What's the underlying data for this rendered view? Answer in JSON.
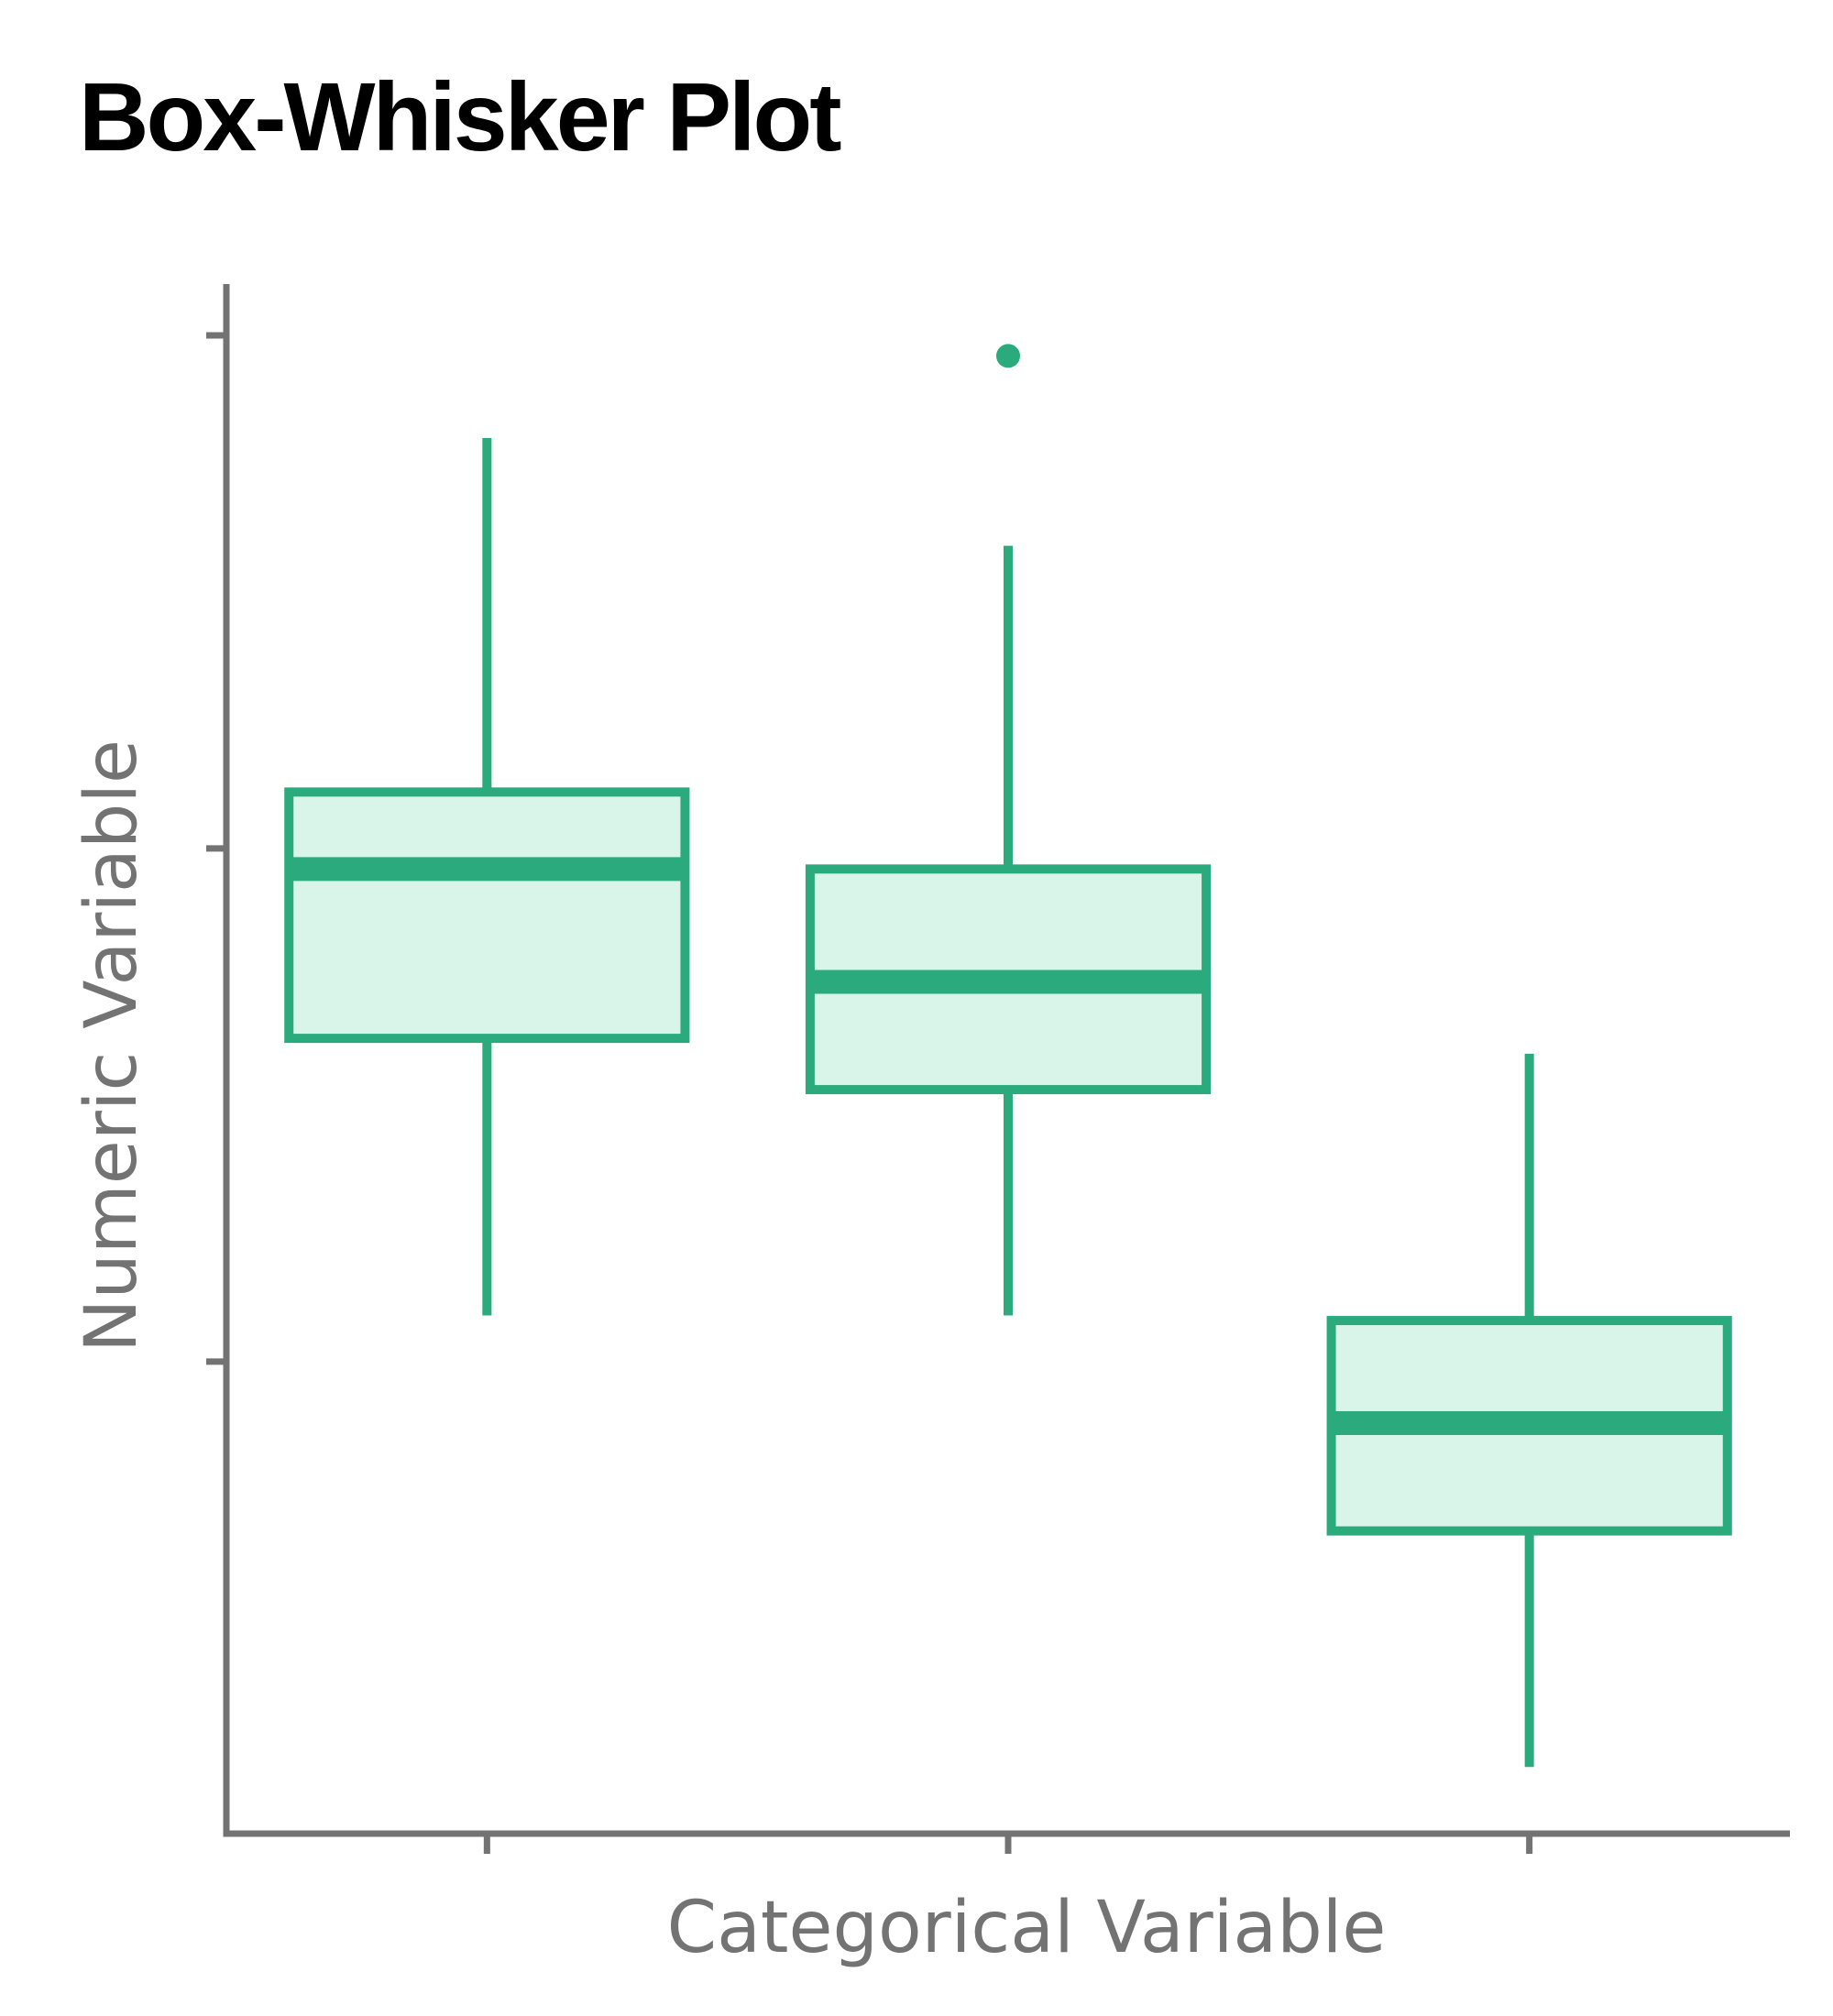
{
  "title": "Box-Whisker Plot",
  "colors": {
    "box_stroke": "#2BAA7E",
    "box_fill": "#D9F5EA",
    "axis": "#737373",
    "label": "#737373",
    "title": "#000000"
  },
  "chart_data": {
    "type": "box",
    "title": "Box-Whisker Plot",
    "xlabel": "Categorical Variable",
    "ylabel": "Numeric Variable",
    "categories": [
      "",
      "",
      ""
    ],
    "ylim": [
      -0.92,
      2.1
    ],
    "yticks": [
      0,
      1,
      2
    ],
    "ytick_labels": [
      "",
      "",
      ""
    ],
    "boxes": [
      {
        "whisker_low": 0.09,
        "q1": 0.63,
        "median": 0.96,
        "q3": 1.11,
        "whisker_high": 1.8,
        "outliers": []
      },
      {
        "whisker_low": 0.09,
        "q1": 0.53,
        "median": 0.74,
        "q3": 0.96,
        "whisker_high": 1.59,
        "outliers": [
          1.96
        ]
      },
      {
        "whisker_low": -0.79,
        "q1": -0.33,
        "median": -0.12,
        "q3": 0.08,
        "whisker_high": 0.6,
        "outliers": []
      }
    ],
    "grid": false,
    "legend": "none"
  }
}
